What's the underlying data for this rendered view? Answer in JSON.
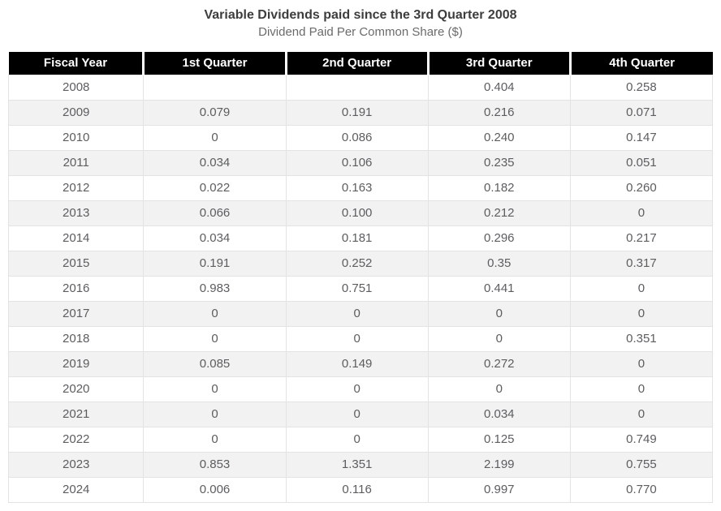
{
  "header": {
    "title": "Variable Dividends paid since the 3rd Quarter 2008",
    "subtitle": "Dividend Paid Per Common Share ($)"
  },
  "table": {
    "columns": [
      "Fiscal Year",
      "1st Quarter",
      "2nd Quarter",
      "3rd Quarter",
      "4th Quarter"
    ],
    "rows": [
      [
        "2008",
        "",
        "",
        "0.404",
        "0.258"
      ],
      [
        "2009",
        "0.079",
        "0.191",
        "0.216",
        "0.071"
      ],
      [
        "2010",
        "0",
        "0.086",
        "0.240",
        "0.147"
      ],
      [
        "2011",
        "0.034",
        "0.106",
        "0.235",
        "0.051"
      ],
      [
        "2012",
        "0.022",
        "0.163",
        "0.182",
        "0.260"
      ],
      [
        "2013",
        "0.066",
        "0.100",
        "0.212",
        "0"
      ],
      [
        "2014",
        "0.034",
        "0.181",
        "0.296",
        "0.217"
      ],
      [
        "2015",
        "0.191",
        "0.252",
        "0.35",
        "0.317"
      ],
      [
        "2016",
        "0.983",
        "0.751",
        "0.441",
        "0"
      ],
      [
        "2017",
        "0",
        "0",
        "0",
        "0"
      ],
      [
        "2018",
        "0",
        "0",
        "0",
        "0.351"
      ],
      [
        "2019",
        "0.085",
        "0.149",
        "0.272",
        "0"
      ],
      [
        "2020",
        "0",
        "0",
        "0",
        "0"
      ],
      [
        "2021",
        "0",
        "0",
        "0.034",
        "0"
      ],
      [
        "2022",
        "0",
        "0",
        "0.125",
        "0.749"
      ],
      [
        "2023",
        "0.853",
        "1.351",
        "2.199",
        "0.755"
      ],
      [
        "2024",
        "0.006",
        "0.116",
        "0.997",
        "0.770"
      ]
    ]
  },
  "colors": {
    "header_bg": "#000000",
    "header_text": "#ffffff",
    "row_bg": "#ffffff",
    "row_alt_bg": "#f2f2f2",
    "cell_border": "#e2e4e4",
    "cell_text": "#5c5d5f",
    "title_text": "#3d3d3d",
    "subtitle_text": "#6b6b6b"
  },
  "chart_data": {
    "type": "table",
    "title": "Variable Dividends paid since the 3rd Quarter 2008",
    "subtitle": "Dividend Paid Per Common Share ($)",
    "xlabel": "Fiscal Year",
    "ylabel": "Dividend Paid Per Common Share ($)",
    "categories": [
      "2008",
      "2009",
      "2010",
      "2011",
      "2012",
      "2013",
      "2014",
      "2015",
      "2016",
      "2017",
      "2018",
      "2019",
      "2020",
      "2021",
      "2022",
      "2023",
      "2024"
    ],
    "series": [
      {
        "name": "1st Quarter",
        "values": [
          null,
          0.079,
          0,
          0.034,
          0.022,
          0.066,
          0.034,
          0.191,
          0.983,
          0,
          0,
          0.085,
          0,
          0,
          0,
          0.853,
          0.006
        ]
      },
      {
        "name": "2nd Quarter",
        "values": [
          null,
          0.191,
          0.086,
          0.106,
          0.163,
          0.1,
          0.181,
          0.252,
          0.751,
          0,
          0,
          0.149,
          0,
          0,
          0,
          1.351,
          0.116
        ]
      },
      {
        "name": "3rd Quarter",
        "values": [
          0.404,
          0.216,
          0.24,
          0.235,
          0.182,
          0.212,
          0.296,
          0.35,
          0.441,
          0,
          0,
          0.272,
          0,
          0.034,
          0.125,
          2.199,
          0.997
        ]
      },
      {
        "name": "4th Quarter",
        "values": [
          0.258,
          0.071,
          0.147,
          0.051,
          0.26,
          0,
          0.217,
          0.317,
          0,
          0,
          0.351,
          0,
          0,
          0,
          0.749,
          0.755,
          0.77
        ]
      }
    ]
  }
}
